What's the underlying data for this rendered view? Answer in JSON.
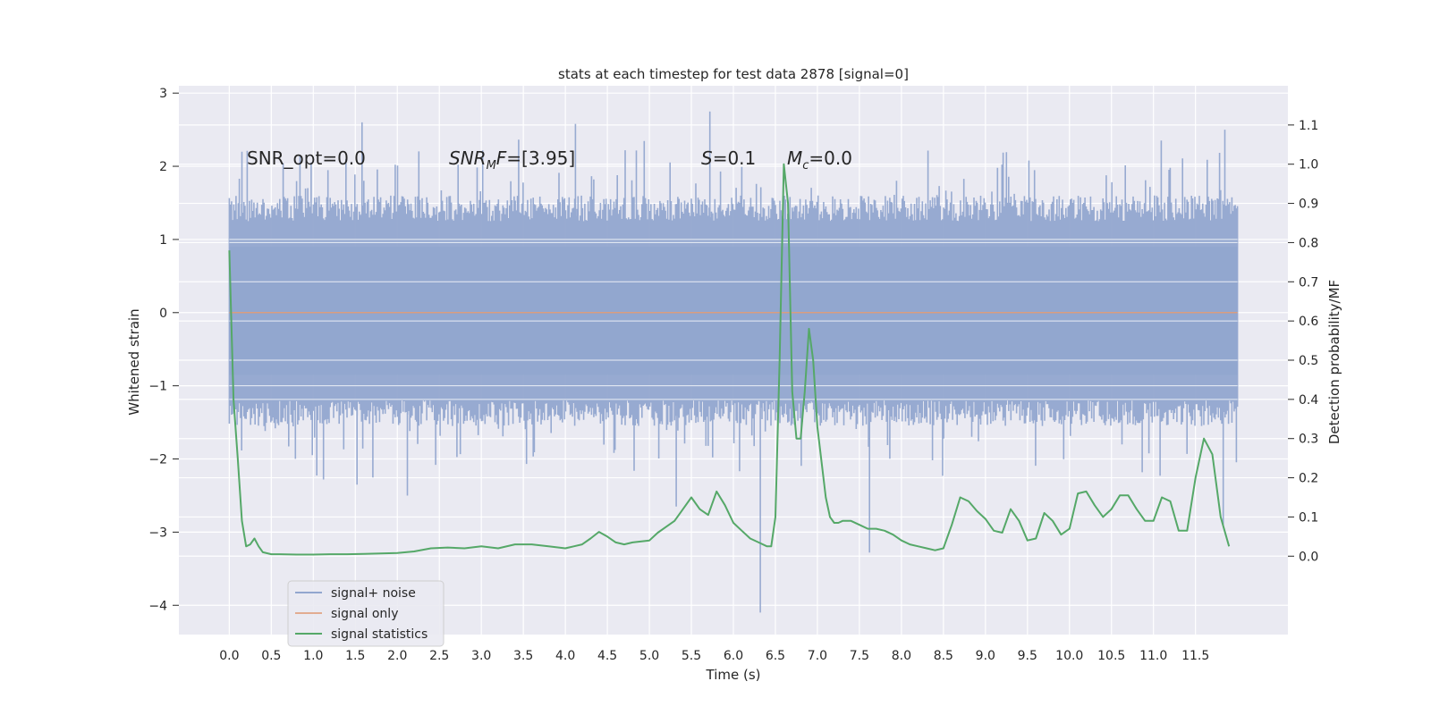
{
  "chart_data": {
    "type": "line",
    "title": "stats at each timestep for test data 2878 [signal=0]",
    "xlabel": "Time (s)",
    "ylabel_left": "Whitened strain",
    "ylabel_right": "Detection probability/MF",
    "xlim": [
      -0.6,
      12.6
    ],
    "ylim_left": [
      -4.4,
      3.1
    ],
    "ylim_right": [
      -0.2,
      1.2
    ],
    "x_ticks": [
      "0.0",
      "0.5",
      "1.0",
      "1.5",
      "2.0",
      "2.5",
      "3.0",
      "3.5",
      "4.0",
      "4.5",
      "5.0",
      "5.5",
      "6.0",
      "6.5",
      "7.0",
      "7.5",
      "8.0",
      "8.5",
      "9.0",
      "9.5",
      "10.0",
      "10.5",
      "11.0",
      "11.5"
    ],
    "y_ticks_left": [
      "3",
      "2",
      "1",
      "0",
      "−1",
      "−2",
      "−3",
      "−4"
    ],
    "y_ticks_right": [
      "1.1",
      "1.0",
      "0.9",
      "0.8",
      "0.7",
      "0.6",
      "0.5",
      "0.4",
      "0.3",
      "0.2",
      "0.1",
      "0.0"
    ],
    "grid": true,
    "legend_position": "lower-left",
    "annotations": {
      "snr_opt": "SNR_opt=0.0",
      "snr_mf_main": "SNR",
      "snr_mf_sub": "M",
      "snr_mf_rest": "F",
      "snr_mf_value": "=[3.95]",
      "s_var": "S",
      "s_value": "=0.1",
      "mc_var": "M",
      "mc_sub": "c",
      "mc_value": "=0.0"
    },
    "series": [
      {
        "name": "signal+ noise",
        "color": "#92a7cf",
        "axis": "left",
        "description_values": {
          "x_range": [
            0.0,
            12.0
          ],
          "band_upper_typical": 1.35,
          "band_lower_typical": -1.3,
          "peaks": [
            {
              "x": 0.15,
              "y": 2.2
            },
            {
              "x": 1.58,
              "y": 2.6
            },
            {
              "x": 4.12,
              "y": 2.58
            },
            {
              "x": 5.72,
              "y": 2.75
            },
            {
              "x": 6.32,
              "y": -4.1
            },
            {
              "x": 7.62,
              "y": -3.28
            },
            {
              "x": 5.32,
              "y": -2.65
            },
            {
              "x": 11.85,
              "y": 2.5
            },
            {
              "x": 11.83,
              "y": -2.9
            },
            {
              "x": 2.12,
              "y": -2.5
            },
            {
              "x": 1.52,
              "y": -2.35
            }
          ]
        }
      },
      {
        "name": "signal only",
        "color": "#dd8452",
        "axis": "left",
        "x": [
          0.0,
          12.0
        ],
        "y": [
          0.0,
          0.0
        ]
      },
      {
        "name": "signal statistics",
        "color": "#55a868",
        "axis": "right",
        "x": [
          0.0,
          0.05,
          0.1,
          0.15,
          0.2,
          0.25,
          0.3,
          0.35,
          0.4,
          0.5,
          0.6,
          0.8,
          1.0,
          1.2,
          1.4,
          1.6,
          1.8,
          2.0,
          2.2,
          2.4,
          2.6,
          2.8,
          3.0,
          3.2,
          3.4,
          3.6,
          3.8,
          4.0,
          4.1,
          4.2,
          4.3,
          4.4,
          4.5,
          4.6,
          4.7,
          4.8,
          5.0,
          5.1,
          5.2,
          5.3,
          5.4,
          5.5,
          5.6,
          5.7,
          5.8,
          5.9,
          6.0,
          6.1,
          6.2,
          6.3,
          6.4,
          6.45,
          6.5,
          6.55,
          6.6,
          6.65,
          6.7,
          6.75,
          6.8,
          6.85,
          6.9,
          6.95,
          7.0,
          7.05,
          7.1,
          7.15,
          7.2,
          7.25,
          7.3,
          7.4,
          7.5,
          7.6,
          7.7,
          7.8,
          7.9,
          8.0,
          8.1,
          8.2,
          8.3,
          8.4,
          8.5,
          8.6,
          8.7,
          8.8,
          8.9,
          9.0,
          9.1,
          9.2,
          9.3,
          9.4,
          9.5,
          9.6,
          9.7,
          9.8,
          9.9,
          10.0,
          10.1,
          10.2,
          10.3,
          10.4,
          10.5,
          10.6,
          10.7,
          10.8,
          10.9,
          11.0,
          11.1,
          11.2,
          11.3,
          11.4,
          11.5,
          11.6,
          11.7,
          11.8,
          11.9
        ],
        "y": [
          0.78,
          0.4,
          0.25,
          0.09,
          0.025,
          0.03,
          0.045,
          0.025,
          0.01,
          0.005,
          0.005,
          0.004,
          0.004,
          0.005,
          0.005,
          0.006,
          0.007,
          0.008,
          0.012,
          0.02,
          0.022,
          0.02,
          0.025,
          0.02,
          0.03,
          0.03,
          0.025,
          0.02,
          0.025,
          0.03,
          0.045,
          0.062,
          0.05,
          0.035,
          0.03,
          0.035,
          0.04,
          0.06,
          0.075,
          0.09,
          0.12,
          0.15,
          0.12,
          0.105,
          0.165,
          0.13,
          0.085,
          0.065,
          0.045,
          0.035,
          0.025,
          0.025,
          0.1,
          0.5,
          1.0,
          0.9,
          0.42,
          0.3,
          0.3,
          0.42,
          0.58,
          0.5,
          0.33,
          0.24,
          0.15,
          0.1,
          0.085,
          0.085,
          0.09,
          0.09,
          0.08,
          0.07,
          0.07,
          0.065,
          0.055,
          0.04,
          0.03,
          0.025,
          0.02,
          0.015,
          0.02,
          0.08,
          0.15,
          0.14,
          0.115,
          0.095,
          0.065,
          0.06,
          0.12,
          0.09,
          0.04,
          0.045,
          0.11,
          0.09,
          0.055,
          0.07,
          0.16,
          0.165,
          0.13,
          0.1,
          0.12,
          0.155,
          0.155,
          0.12,
          0.09,
          0.09,
          0.15,
          0.14,
          0.065,
          0.065,
          0.2,
          0.3,
          0.26,
          0.1,
          0.025
        ]
      }
    ]
  }
}
